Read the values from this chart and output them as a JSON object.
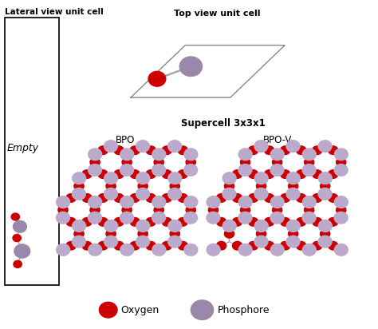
{
  "bg_color": "#ffffff",
  "title_lateral": "Lateral view unit cell",
  "title_top": "Top view unit cell",
  "title_supercell": "Supercell 3x3x1",
  "label_bpo": "BPO",
  "label_bpov": "BPO-V",
  "label_empty": "Empty",
  "oxygen_color": "#cc0000",
  "phosphore_color": "#9988aa",
  "phosphore_light": "#bbaacc",
  "bond_color": "#aaaaaa",
  "legend_oxygen": "Oxygen",
  "legend_phosphore": "Phosphore",
  "figsize": [
    4.74,
    4.12
  ],
  "dpi": 100
}
